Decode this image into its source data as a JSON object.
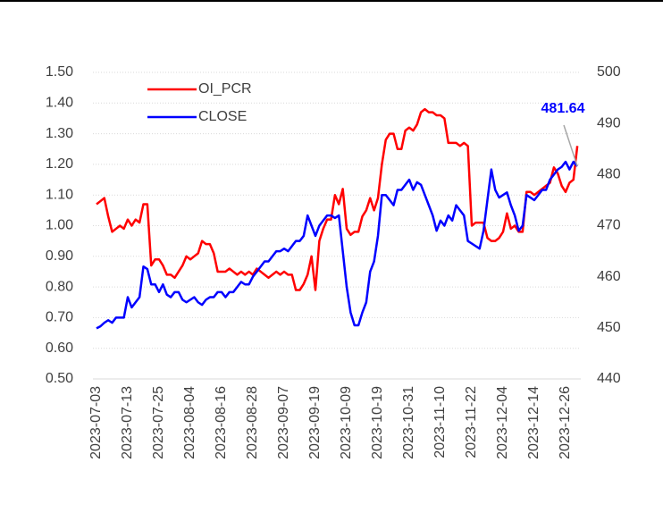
{
  "chart_data": {
    "type": "line",
    "categories": [
      "2023-07-03",
      null,
      null,
      null,
      null,
      null,
      null,
      null,
      "2023-07-13",
      null,
      null,
      null,
      null,
      null,
      null,
      null,
      "2023-07-25",
      null,
      null,
      null,
      null,
      null,
      null,
      null,
      "2023-08-04",
      null,
      null,
      null,
      null,
      null,
      null,
      null,
      "2023-08-16",
      null,
      null,
      null,
      null,
      null,
      null,
      null,
      "2023-08-28",
      null,
      null,
      null,
      null,
      null,
      null,
      null,
      "2023-09-07",
      null,
      null,
      null,
      null,
      null,
      null,
      null,
      "2023-09-19",
      null,
      null,
      null,
      null,
      null,
      null,
      null,
      "2023-10-09",
      null,
      null,
      null,
      null,
      null,
      null,
      null,
      "2023-10-19",
      null,
      null,
      null,
      null,
      null,
      null,
      null,
      "2023-10-31",
      null,
      null,
      null,
      null,
      null,
      null,
      null,
      "2023-11-10",
      null,
      null,
      null,
      null,
      null,
      null,
      null,
      "2023-11-22",
      null,
      null,
      null,
      null,
      null,
      null,
      null,
      "2023-12-04",
      null,
      null,
      null,
      null,
      null,
      null,
      null,
      "2023-12-14",
      null,
      null,
      null,
      null,
      null,
      null,
      null,
      "2023-12-26",
      null,
      null,
      null
    ],
    "series": [
      {
        "name": "OI_PCR",
        "color": "#ff0000",
        "axis": "y",
        "values": [
          1.07,
          1.08,
          1.09,
          1.03,
          0.98,
          0.99,
          1.0,
          0.99,
          1.02,
          1.0,
          1.02,
          1.01,
          1.07,
          1.07,
          0.87,
          0.89,
          0.89,
          0.87,
          0.84,
          0.84,
          0.83,
          0.85,
          0.87,
          0.9,
          0.89,
          0.9,
          0.91,
          0.95,
          0.94,
          0.94,
          0.91,
          0.85,
          0.85,
          0.85,
          0.86,
          0.85,
          0.84,
          0.85,
          0.84,
          0.85,
          0.84,
          0.86,
          0.85,
          0.84,
          0.83,
          0.84,
          0.85,
          0.84,
          0.85,
          0.84,
          0.84,
          0.79,
          0.79,
          0.81,
          0.84,
          0.9,
          0.79,
          0.95,
          0.99,
          1.02,
          1.02,
          1.1,
          1.07,
          1.12,
          0.99,
          0.97,
          0.98,
          0.98,
          1.03,
          1.05,
          1.09,
          1.05,
          1.09,
          1.2,
          1.28,
          1.3,
          1.3,
          1.25,
          1.25,
          1.31,
          1.32,
          1.31,
          1.33,
          1.37,
          1.38,
          1.37,
          1.37,
          1.36,
          1.36,
          1.35,
          1.27,
          1.27,
          1.27,
          1.26,
          1.27,
          1.26,
          1.0,
          1.01,
          1.01,
          1.01,
          0.96,
          0.95,
          0.95,
          0.96,
          0.98,
          1.04,
          0.99,
          1.0,
          0.98,
          0.98,
          1.11,
          1.11,
          1.1,
          1.11,
          1.12,
          1.13,
          1.14,
          1.19,
          1.17,
          1.13,
          1.11,
          1.14,
          1.15,
          1.26
        ]
      },
      {
        "name": "CLOSE",
        "color": "#0000ff",
        "axis": "y2",
        "values": [
          449.9,
          450.3,
          451,
          451.5,
          451,
          452,
          452,
          452,
          456,
          454,
          455,
          456,
          462,
          461.5,
          458.5,
          458.5,
          457,
          458.5,
          456.5,
          456,
          457,
          457,
          455.5,
          455,
          455.5,
          456,
          455,
          454.5,
          455.5,
          456,
          456,
          457,
          457,
          456,
          457,
          457,
          458,
          459,
          458.5,
          458.5,
          460,
          461,
          462,
          463,
          463,
          464,
          465,
          465,
          465.5,
          465,
          466,
          467,
          467,
          468,
          472,
          470,
          468,
          470,
          471,
          472,
          472,
          471.5,
          472,
          465,
          458,
          453,
          450.5,
          450.5,
          453,
          455,
          461,
          463,
          468,
          476,
          476,
          475,
          474,
          477,
          477,
          478,
          479,
          477,
          478.5,
          478,
          476,
          474,
          472,
          469,
          471,
          470,
          472,
          471,
          474,
          473,
          472,
          467,
          466.5,
          466,
          465.5,
          469,
          475,
          481,
          477,
          475.5,
          476,
          476.5,
          474,
          472,
          469,
          470,
          476,
          475.5,
          475,
          476,
          477,
          477,
          479,
          480,
          481,
          481.5,
          482.5,
          481,
          482.5,
          481.64
        ]
      }
    ],
    "annotations": [
      {
        "text": "481.64",
        "color": "#0000ff"
      }
    ],
    "ylim": [
      0.5,
      1.5
    ],
    "yticks": [
      {
        "value": 0.5,
        "label": "0.50"
      },
      {
        "value": 0.6,
        "label": "0.60"
      },
      {
        "value": 0.7,
        "label": "0.70"
      },
      {
        "value": 0.8,
        "label": "0.80"
      },
      {
        "value": 0.9,
        "label": "0.90"
      },
      {
        "value": 1.0,
        "label": "1.00"
      },
      {
        "value": 1.1,
        "label": "1.10"
      },
      {
        "value": 1.2,
        "label": "1.20"
      },
      {
        "value": 1.3,
        "label": "1.30"
      },
      {
        "value": 1.4,
        "label": "1.40"
      },
      {
        "value": 1.5,
        "label": "1.50"
      }
    ],
    "y2lim": [
      440,
      500
    ],
    "y2ticks": [
      440,
      450,
      460,
      470,
      480,
      490,
      500
    ],
    "grid": true
  }
}
